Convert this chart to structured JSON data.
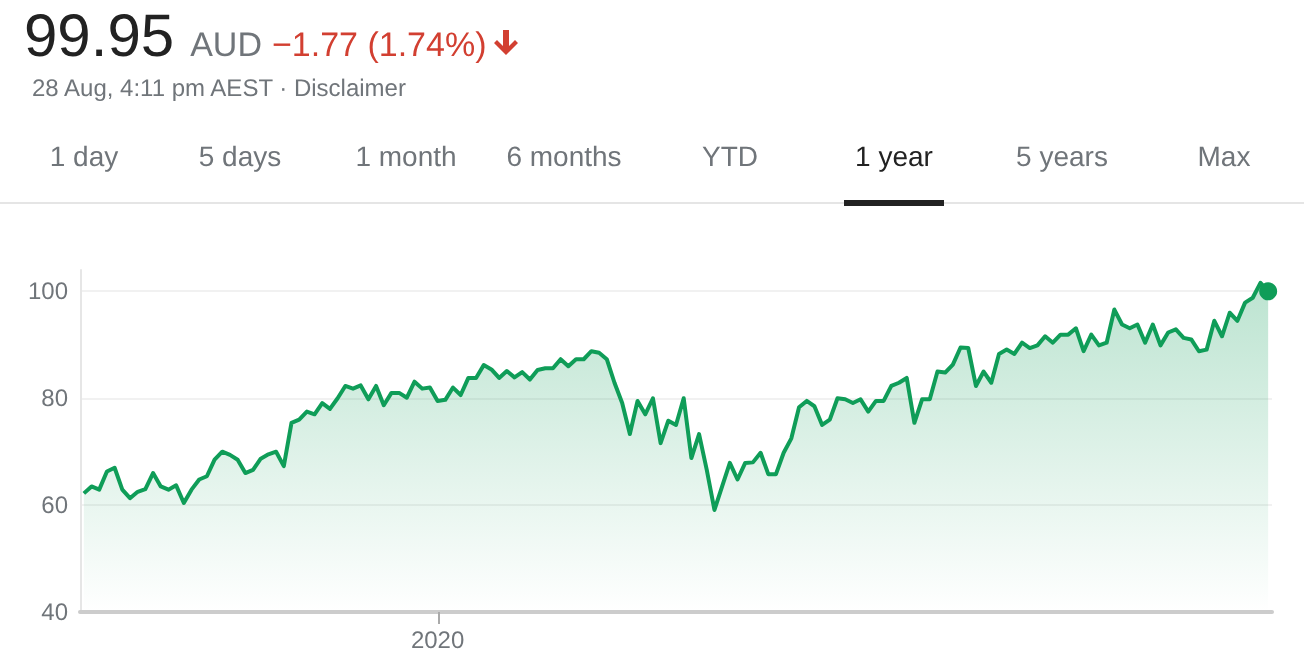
{
  "chart_data": {
    "type": "area",
    "title": "99.95",
    "subtitle": "28 Aug, 4:11 pm AEST · Disclaimer",
    "annotations": [
      "AUD",
      "−1.77 (1.74%)",
      "1 day",
      "5 days",
      "1 month",
      "6 months",
      "YTD",
      "1 year",
      "5 years",
      "Max"
    ],
    "categories": [
      null,
      null,
      null,
      null,
      null,
      null,
      null,
      null,
      null,
      null,
      null,
      null,
      null,
      null,
      null,
      null,
      null,
      null,
      null,
      null,
      null,
      null,
      null,
      null,
      null,
      null,
      null,
      null,
      null,
      null,
      null,
      null,
      null,
      null,
      null,
      null,
      null,
      null,
      null,
      null,
      null,
      null,
      null,
      null,
      null,
      null,
      "2020",
      null,
      null,
      null,
      null,
      null,
      null,
      null,
      null,
      null,
      null,
      null,
      null,
      null,
      null,
      null,
      null,
      null,
      null,
      null,
      null,
      null,
      null,
      null,
      null,
      null,
      null,
      null,
      null,
      null,
      null,
      null,
      null,
      null,
      null,
      null,
      null,
      null,
      null,
      null,
      null,
      null,
      null,
      null,
      null,
      null,
      null,
      null,
      null,
      null,
      null,
      null,
      null,
      null,
      null,
      null,
      null,
      null,
      null,
      null,
      null,
      null,
      null,
      null,
      null,
      null,
      null,
      null,
      null,
      null,
      null,
      null,
      null,
      null,
      null,
      null,
      null,
      null,
      null,
      null,
      null,
      null,
      null,
      null,
      null,
      null,
      null,
      null,
      null,
      null,
      null,
      null,
      null,
      null,
      null,
      null,
      null,
      null,
      null,
      null,
      null,
      null,
      null,
      null,
      null,
      null,
      null,
      null,
      null
    ],
    "series": [
      {
        "color": "#0f9d58",
        "values": [
          62.2,
          63.5,
          62.9,
          66.3,
          67,
          62.9,
          61.3,
          62.5,
          63,
          66,
          63.5,
          62.9,
          63.7,
          60.4,
          62.9,
          64.8,
          65.4,
          68.5,
          70,
          69.4,
          68.5,
          66,
          66.6,
          68.7,
          69.5,
          70,
          67.3,
          75.4,
          76,
          77.5,
          77,
          79.1,
          78,
          80,
          82.3,
          81.8,
          82.4,
          79.8,
          82.3,
          78.7,
          81,
          81,
          80.1,
          83.1,
          81.8,
          82,
          79.5,
          79.7,
          82,
          80.6,
          83.8,
          83.8,
          86.2,
          85.4,
          83.8,
          85.1,
          83.9,
          84.9,
          83.5,
          85.3,
          85.6,
          85.6,
          87.3,
          86,
          87.3,
          87.3,
          88.8,
          88.5,
          87.3,
          82.9,
          79.1,
          73.3,
          79.5,
          77,
          80,
          71.6,
          75.8,
          75,
          80,
          68.8,
          73.3,
          66.6,
          59.1,
          63.5,
          67.9,
          64.8,
          67.9,
          68,
          69.8,
          65.8,
          65.8,
          69.8,
          72.5,
          78.3,
          79.5,
          78.5,
          75,
          76,
          80,
          79.8,
          79.1,
          79.8,
          77.5,
          79.5,
          79.5,
          82.3,
          82.9,
          83.8,
          75.4,
          79.8,
          79.8,
          85,
          84.8,
          86.3,
          89.5,
          89.4,
          82.3,
          85,
          82.9,
          88.3,
          89.1,
          88.3,
          90.4,
          89.4,
          89.9,
          91.6,
          90.4,
          91.9,
          91.9,
          93.1,
          88.8,
          91.9,
          89.9,
          90.4,
          96.6,
          93.8,
          93.1,
          93.8,
          90.4,
          93.8,
          89.9,
          92.3,
          92.9,
          91.3,
          91,
          88.8,
          89.1,
          94.5,
          91.6,
          96,
          94.5,
          97.9,
          98.8,
          101.6,
          100
        ]
      }
    ],
    "ylim": [
      40,
      104
    ],
    "yticks": [
      40,
      60,
      80,
      100
    ],
    "grid": "y",
    "marker": "none",
    "line_style": "solid"
  }
}
